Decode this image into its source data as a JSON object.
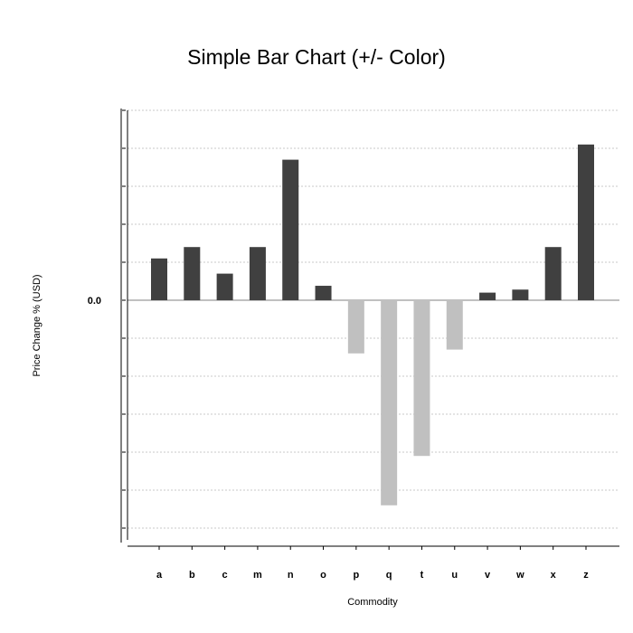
{
  "chart_data": {
    "type": "bar",
    "title": "Simple Bar Chart (+/- Color)",
    "xlabel": "Commodity",
    "ylabel": "Price Change % (USD)",
    "y_tick_labels": [
      "0.0"
    ],
    "categories": [
      "a",
      "b",
      "c",
      "m",
      "n",
      "o",
      "p",
      "q",
      "t",
      "u",
      "v",
      "w",
      "x",
      "z"
    ],
    "values": [
      1.1,
      1.4,
      0.7,
      1.4,
      3.7,
      0.38,
      -1.4,
      -5.4,
      -4.1,
      -1.3,
      0.2,
      0.28,
      1.4,
      4.1
    ],
    "ylim": [
      -6.3,
      5.0
    ],
    "y_tick_step": 1.0,
    "grid": true,
    "colors": {
      "positive": "#404040",
      "negative": "#c0c0c0"
    }
  }
}
